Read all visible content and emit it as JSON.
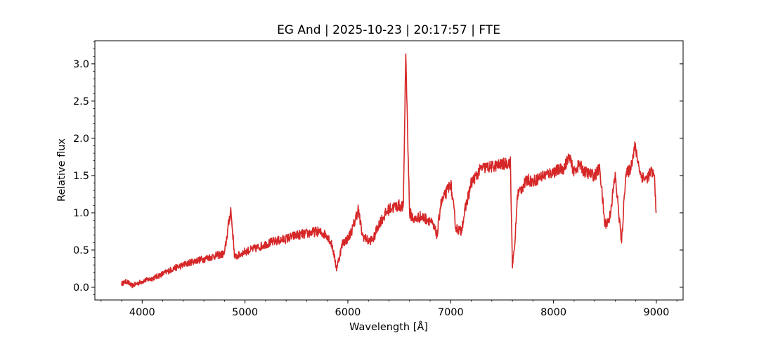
{
  "chart_data": {
    "type": "line",
    "title": "EG And | 2025-10-23 | 20:17:57 | FTE",
    "xlabel": "Wavelength [Å]",
    "ylabel": "Relative flux",
    "xlim": [
      3540,
      9260
    ],
    "ylim": [
      -0.17,
      3.31
    ],
    "xticks": [
      4000,
      5000,
      6000,
      7000,
      8000,
      9000
    ],
    "xtick_labels": [
      "4000",
      "5000",
      "6000",
      "7000",
      "8000",
      "9000"
    ],
    "yticks": [
      0.0,
      0.5,
      1.0,
      1.5,
      2.0,
      2.5,
      3.0
    ],
    "ytick_labels": [
      "0.0",
      "0.5",
      "1.0",
      "1.5",
      "2.0",
      "2.5",
      "3.0"
    ],
    "grid": false,
    "legend": "none",
    "series": [
      {
        "color": "#d62728",
        "x": [
          3800,
          3850,
          3900,
          3950,
          4000,
          4100,
          4200,
          4300,
          4400,
          4500,
          4600,
          4700,
          4800,
          4861,
          4900,
          5000,
          5100,
          5200,
          5300,
          5400,
          5500,
          5600,
          5700,
          5800,
          5850,
          5890,
          5950,
          6000,
          6050,
          6100,
          6140,
          6200,
          6250,
          6300,
          6400,
          6500,
          6540,
          6563,
          6600,
          6650,
          6700,
          6800,
          6870,
          6900,
          6950,
          7000,
          7050,
          7100,
          7150,
          7200,
          7250,
          7300,
          7400,
          7500,
          7580,
          7600,
          7620,
          7650,
          7700,
          7750,
          7800,
          7900,
          8000,
          8100,
          8150,
          8200,
          8250,
          8300,
          8400,
          8450,
          8498,
          8542,
          8600,
          8662,
          8700,
          8750,
          8790,
          8820,
          8850,
          8900,
          8950,
          8980,
          9000
        ],
        "y": [
          0.05,
          0.08,
          0.02,
          0.05,
          0.08,
          0.12,
          0.18,
          0.25,
          0.3,
          0.35,
          0.38,
          0.42,
          0.45,
          1.05,
          0.4,
          0.48,
          0.52,
          0.58,
          0.62,
          0.65,
          0.7,
          0.72,
          0.75,
          0.7,
          0.55,
          0.25,
          0.6,
          0.65,
          0.8,
          1.05,
          0.7,
          0.62,
          0.65,
          0.85,
          1.05,
          1.1,
          1.08,
          3.15,
          1.0,
          0.9,
          0.95,
          0.9,
          0.7,
          1.1,
          1.25,
          1.4,
          0.8,
          0.75,
          1.1,
          1.4,
          1.5,
          1.6,
          1.62,
          1.65,
          1.68,
          0.3,
          0.5,
          1.25,
          1.35,
          1.45,
          1.42,
          1.5,
          1.55,
          1.6,
          1.75,
          1.55,
          1.65,
          1.55,
          1.5,
          1.6,
          0.85,
          0.9,
          1.5,
          0.6,
          1.5,
          1.6,
          1.9,
          1.7,
          1.5,
          1.45,
          1.55,
          1.5,
          1.0
        ]
      }
    ]
  }
}
